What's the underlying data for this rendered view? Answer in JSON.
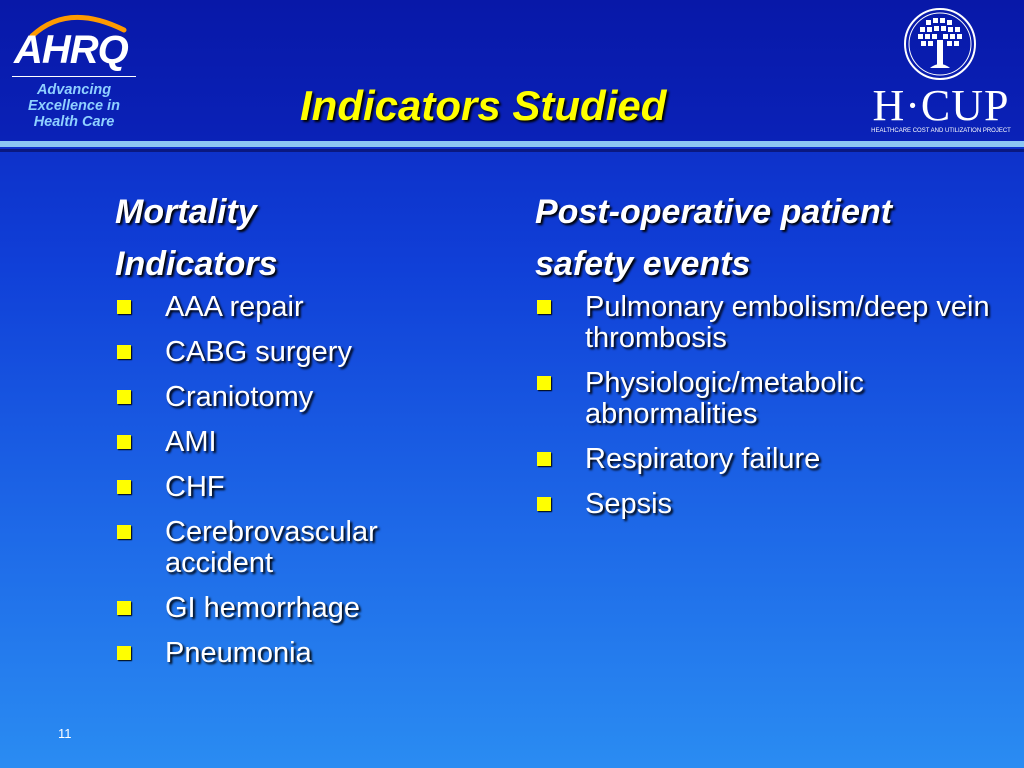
{
  "logos": {
    "ahrq": {
      "wordmark": "AHRQ",
      "tagline": [
        "Advancing",
        "Excellence in",
        "Health Care"
      ],
      "tagline_color": "#8fd0ff"
    },
    "hcup": {
      "wordmark": "H·CUP",
      "subtitle": "HEALTHCARE COST AND UTILIZATION PROJECT",
      "icon": "tree-seal-icon"
    }
  },
  "title": "Indicators Studied",
  "title_color": "#ffff00",
  "left_column": {
    "heading_lines": [
      "Mortality",
      "Indicators"
    ],
    "items": [
      "AAA repair",
      "CABG surgery",
      "Craniotomy",
      "AMI",
      "CHF",
      "Cerebrovascular accident",
      "GI hemorrhage",
      "Pneumonia"
    ]
  },
  "right_column": {
    "heading_lines": [
      "Post-operative patient",
      "safety events"
    ],
    "items": [
      "Pulmonary embolism/deep vein thrombosis",
      "Physiologic/metabolic abnormalities",
      "Respiratory failure",
      "Sepsis"
    ]
  },
  "bullet_color": "#ffff00",
  "page_number": "11"
}
